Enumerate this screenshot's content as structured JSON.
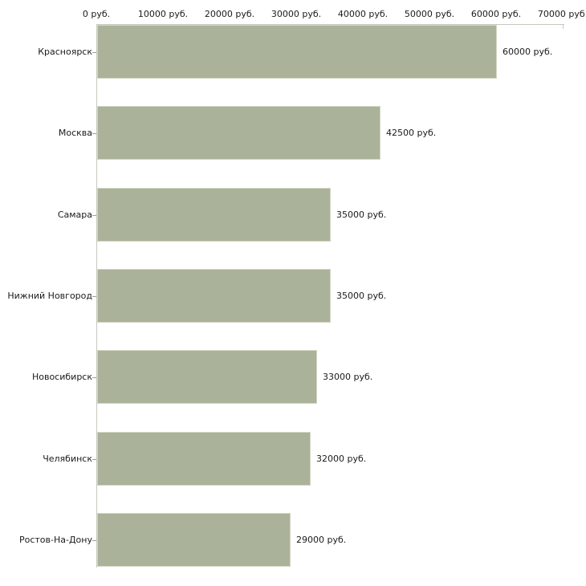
{
  "chart_data": {
    "type": "bar",
    "orientation": "horizontal",
    "title": "",
    "xlabel": "",
    "ylabel": "",
    "unit": "руб.",
    "grid": false,
    "legend": null,
    "xlim": [
      0,
      70000
    ],
    "x_ticks": [
      0,
      10000,
      20000,
      30000,
      40000,
      50000,
      60000,
      70000
    ],
    "x_tick_labels": [
      "0 руб.",
      "10000 руб.",
      "20000 руб.",
      "30000 руб.",
      "40000 руб.",
      "50000 руб.",
      "60000 руб.",
      "70000 руб."
    ],
    "categories": [
      "Красноярск",
      "Москва",
      "Самара",
      "Нижний Новгород",
      "Новосибирск",
      "Челябинск",
      "Ростов-На-Дону"
    ],
    "values": [
      60000,
      42500,
      35000,
      35000,
      33000,
      32000,
      29000
    ],
    "value_labels": [
      "60000 руб.",
      "42500 руб.",
      "35000 руб.",
      "35000 руб.",
      "33000 руб.",
      "32000 руб.",
      "29000 руб."
    ],
    "colors": {
      "background": "#ffffff",
      "bar_fill": "#abb29a",
      "bar_border": "#d3d7c4",
      "axis_line": "#c6c9bd",
      "tick_mark": "#c9cdc1",
      "category_tick": "#9a9d93",
      "text": "#1a1a1a"
    }
  }
}
